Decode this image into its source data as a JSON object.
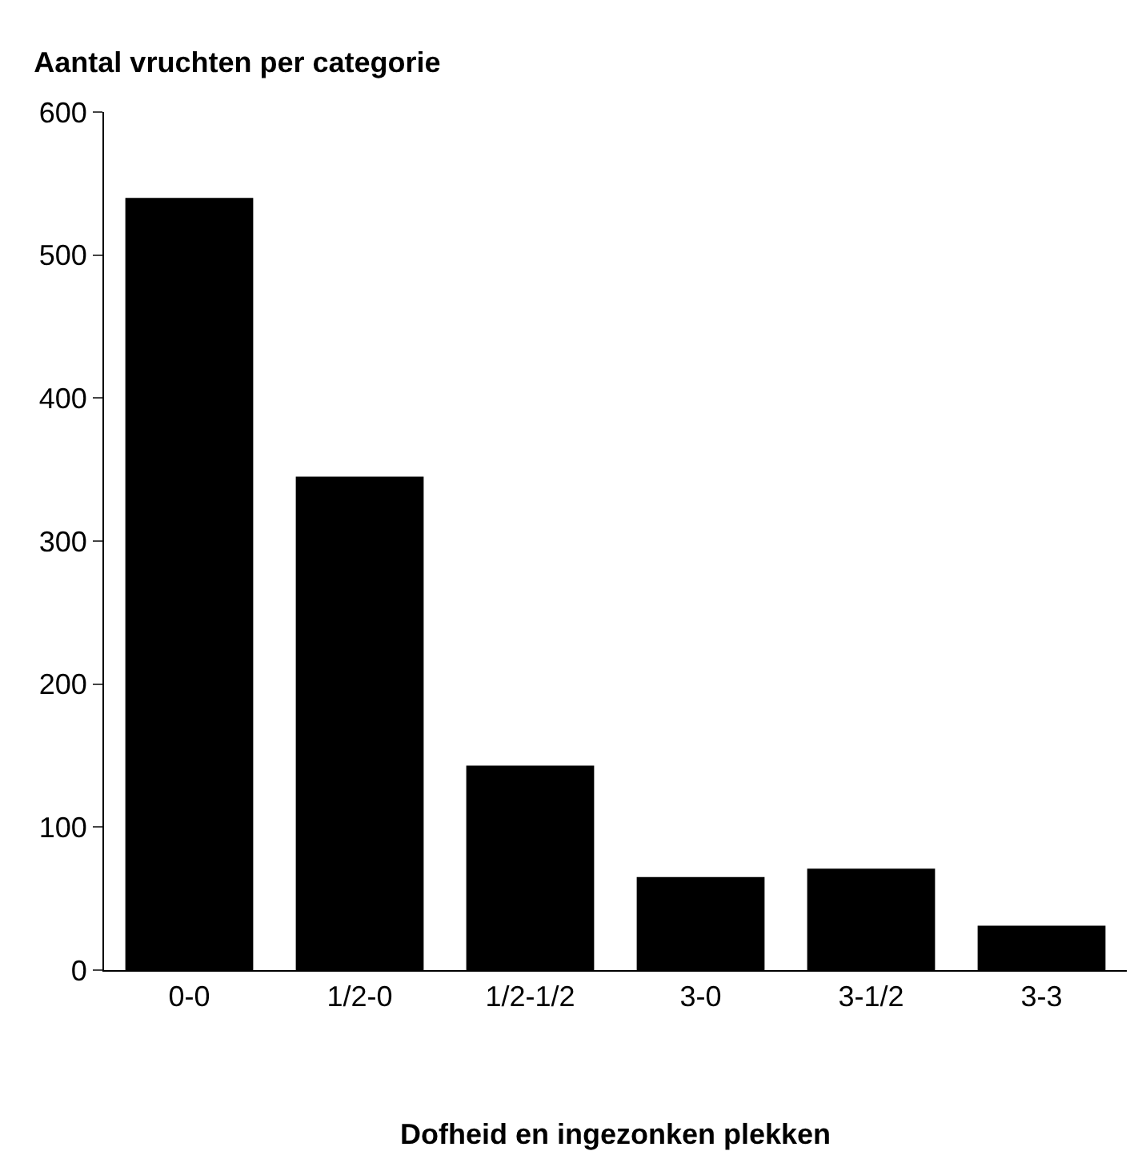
{
  "chart_data": {
    "type": "bar",
    "title": "Aantal vruchten per categorie",
    "xlabel": "Dofheid en ingezonken plekken",
    "categories": [
      "0-0",
      "1/2-0",
      "1/2-1/2",
      "3-0",
      "3-1/2",
      "3-3"
    ],
    "values": [
      540,
      345,
      143,
      65,
      71,
      31
    ],
    "color": "#000000",
    "ylim": [
      0,
      600
    ],
    "yticks": [
      0,
      100,
      200,
      300,
      400,
      500,
      600
    ],
    "grid": false
  }
}
